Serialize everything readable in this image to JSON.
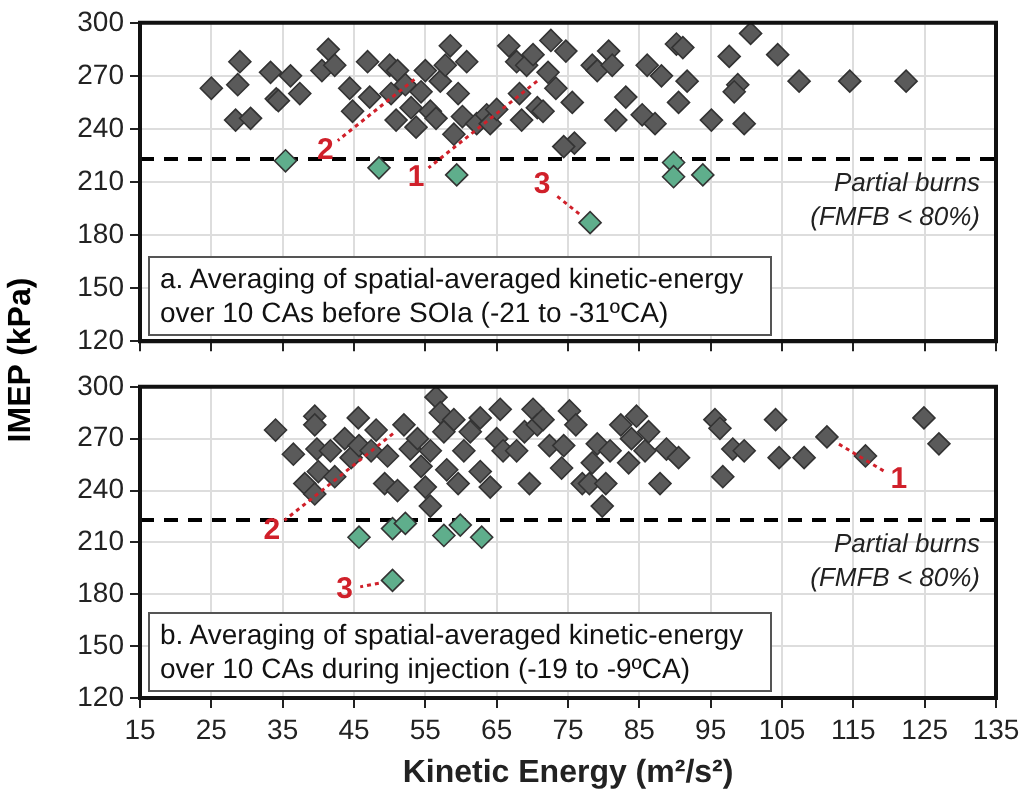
{
  "chart_data": [
    {
      "type": "scatter",
      "ylabel": "IMEP (kPa)",
      "xlim": [
        15,
        135
      ],
      "xticks": [
        15,
        25,
        35,
        45,
        55,
        65,
        75,
        85,
        95,
        105,
        115,
        125,
        135
      ],
      "ylim": [
        120,
        300
      ],
      "yticks": [
        120,
        150,
        180,
        210,
        240,
        270,
        300
      ],
      "grid": true,
      "legend": false,
      "marker": "diamond",
      "tick_labels": "y",
      "series": [
        {
          "color": "#5a5a5a",
          "x": [
            25,
            29,
            28.7,
            28.4,
            30.5,
            33.3,
            34.1,
            34.4,
            36.1,
            37.4,
            40.5,
            41.4,
            42.3,
            44.4,
            44.8,
            46.9,
            47.2,
            50,
            50.2,
            50.9,
            51.1,
            52.2,
            53,
            53.7,
            54.4,
            55,
            55.7,
            56.5,
            57.1,
            57.8,
            58.5,
            59,
            59.6,
            60.2,
            60.8,
            62.2,
            63.6,
            64.1,
            65,
            66.7,
            67.8,
            68.2,
            68.5,
            69.2,
            70.1,
            70.7,
            71.5,
            72.2,
            72.6,
            73.3,
            74.7,
            75.6,
            75.9,
            74.4,
            78.4,
            79.1,
            80.7,
            81.2,
            81.7,
            83.1,
            85.4,
            86.1,
            87.2,
            88.1,
            90.2,
            91.1,
            91.7,
            90.5,
            95.1,
            97.6,
            98.8,
            98.3,
            99.7,
            100.6,
            104.4,
            107.4,
            114.5,
            122.4
          ],
          "values": [
            263,
            278,
            265,
            245,
            246,
            272,
            257,
            256,
            270,
            260,
            273,
            285,
            276,
            263,
            250,
            278,
            258,
            276,
            260,
            245,
            273,
            265,
            252,
            241,
            261,
            273,
            250,
            246,
            267,
            276,
            287,
            237,
            260,
            247,
            278,
            243,
            248,
            243,
            251,
            287,
            278,
            260,
            245,
            276,
            282,
            252,
            250,
            272,
            290,
            263,
            284,
            255,
            232,
            230,
            276,
            273,
            284,
            276,
            245,
            258,
            248,
            276,
            243,
            270,
            288,
            286,
            267,
            255,
            245,
            281,
            265,
            261,
            243,
            294,
            282,
            267,
            267,
            267
          ]
        },
        {
          "color": "#5fae8c",
          "x": [
            35.4,
            48.5,
            59.4,
            78.1,
            89.8,
            89.8,
            93.9
          ],
          "values": [
            222,
            218,
            214,
            187,
            221,
            213,
            214
          ]
        }
      ],
      "ref_lines": [
        {
          "axis": "y",
          "value": 223,
          "label": "Partial burns (FMFB < 80%)",
          "color": "#000000",
          "line_style": "dashed"
        }
      ],
      "annotations": [
        "a. Averaging of spatial-averaged kinetic-energy over 10 CAs before SOIa (-21 to -31ºCA)",
        {
          "text": "1",
          "x": 72.2,
          "y": 272
        },
        {
          "text": "2",
          "x": 55,
          "y": 273
        },
        {
          "text": "3",
          "x": 78.1,
          "y": 187
        }
      ]
    },
    {
      "type": "scatter",
      "xlabel": "Kinetic Energy (m²/s²)",
      "xlim": [
        15,
        135
      ],
      "xticks": [
        15,
        25,
        35,
        45,
        55,
        65,
        75,
        85,
        95,
        105,
        115,
        125,
        135
      ],
      "ylim": [
        120,
        300
      ],
      "yticks": [
        120,
        150,
        180,
        210,
        240,
        270,
        300
      ],
      "grid": true,
      "legend": false,
      "marker": "diamond",
      "series": [
        {
          "color": "#5a5a5a",
          "x": [
            34,
            36.5,
            38.1,
            39.5,
            39.5,
            39.8,
            40,
            39.5,
            41.7,
            42.3,
            43.7,
            44.6,
            45.6,
            45.7,
            47.4,
            48.1,
            49.3,
            49.7,
            51.1,
            52,
            52.9,
            53.9,
            54.4,
            55,
            55.7,
            55.7,
            56.5,
            57.1,
            57.6,
            58,
            59,
            59.6,
            60.4,
            61.3,
            62.7,
            62.7,
            64.1,
            65.5,
            65,
            65.9,
            67.8,
            68.9,
            69.6,
            70.1,
            70.7,
            71.5,
            72.4,
            74.1,
            74.4,
            75.2,
            76.1,
            77,
            78,
            78.4,
            79.1,
            79.8,
            80.3,
            80.9,
            82.4,
            83.5,
            83.9,
            84.6,
            85.8,
            86.3,
            87.9,
            88.8,
            90.5,
            95.6,
            96.3,
            96.7,
            98.1,
            99.7,
            104.1,
            104.6,
            108.1,
            111.3,
            116.7,
            124.9,
            127
          ],
          "values": [
            275,
            261,
            244,
            283,
            278,
            264,
            251,
            238,
            263,
            248,
            270,
            259,
            282,
            266,
            263,
            275,
            244,
            260,
            240,
            278,
            264,
            270,
            254,
            242,
            231,
            263,
            294,
            285,
            274,
            252,
            281,
            244,
            263,
            274,
            282,
            251,
            242,
            287,
            270,
            263,
            263,
            274,
            244,
            287,
            278,
            281,
            266,
            253,
            266,
            286,
            278,
            244,
            244,
            256,
            267,
            231,
            244,
            263,
            278,
            256,
            270,
            283,
            263,
            274,
            244,
            264,
            259,
            281,
            276,
            248,
            264,
            263,
            281,
            259,
            259,
            271,
            260,
            282,
            267
          ]
        },
        {
          "color": "#5fae8c",
          "x": [
            45.7,
            50.4,
            52.2,
            57.6,
            59.9,
            62.9,
            50.4
          ],
          "values": [
            213,
            218,
            221,
            214,
            220,
            213,
            188
          ]
        }
      ],
      "ref_lines": [
        {
          "axis": "y",
          "value": 223,
          "label": "Partial burns (FMFB < 80%)",
          "color": "#000000",
          "line_style": "dashed"
        }
      ],
      "annotations": [
        "b. Averaging of spatial-averaged kinetic-energy over 10 CAs during injection (-19 to -9ºCA)",
        {
          "text": "1",
          "x": 111.3,
          "y": 271
        },
        {
          "text": "2",
          "x": 52,
          "y": 278
        },
        {
          "text": "3",
          "x": 50.4,
          "y": 188
        }
      ]
    }
  ]
}
